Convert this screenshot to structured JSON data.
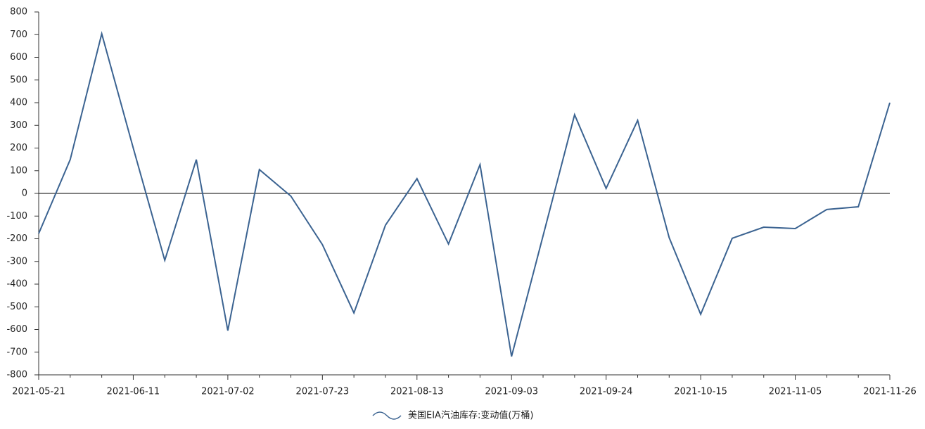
{
  "chart_data": {
    "type": "line",
    "categories": [
      "2021-05-21",
      null,
      null,
      "2021-06-11",
      null,
      null,
      "2021-07-02",
      null,
      null,
      "2021-07-23",
      null,
      null,
      "2021-08-13",
      null,
      null,
      "2021-09-03",
      null,
      null,
      "2021-09-24",
      null,
      null,
      "2021-10-15",
      null,
      null,
      "2021-11-05",
      null,
      null,
      "2021-11-26"
    ],
    "series": [
      {
        "name": "美国EIA汽油库存:变动值(万桶)",
        "color": "#3b6391",
        "values": [
          -177,
          149,
          704,
          200,
          -295,
          149,
          -605,
          105,
          -12,
          -226,
          -527,
          -140,
          65,
          -223,
          127,
          -719,
          -187,
          347,
          22,
          322,
          -195,
          -533,
          -198,
          -149,
          -155,
          -71,
          -59,
          400
        ]
      }
    ],
    "ylim": [
      -800,
      800
    ],
    "yticks": [
      -800,
      -700,
      -600,
      -500,
      -400,
      -300,
      -200,
      -100,
      0,
      100,
      200,
      300,
      400,
      500,
      600,
      700,
      800
    ],
    "legend": "bottom"
  }
}
